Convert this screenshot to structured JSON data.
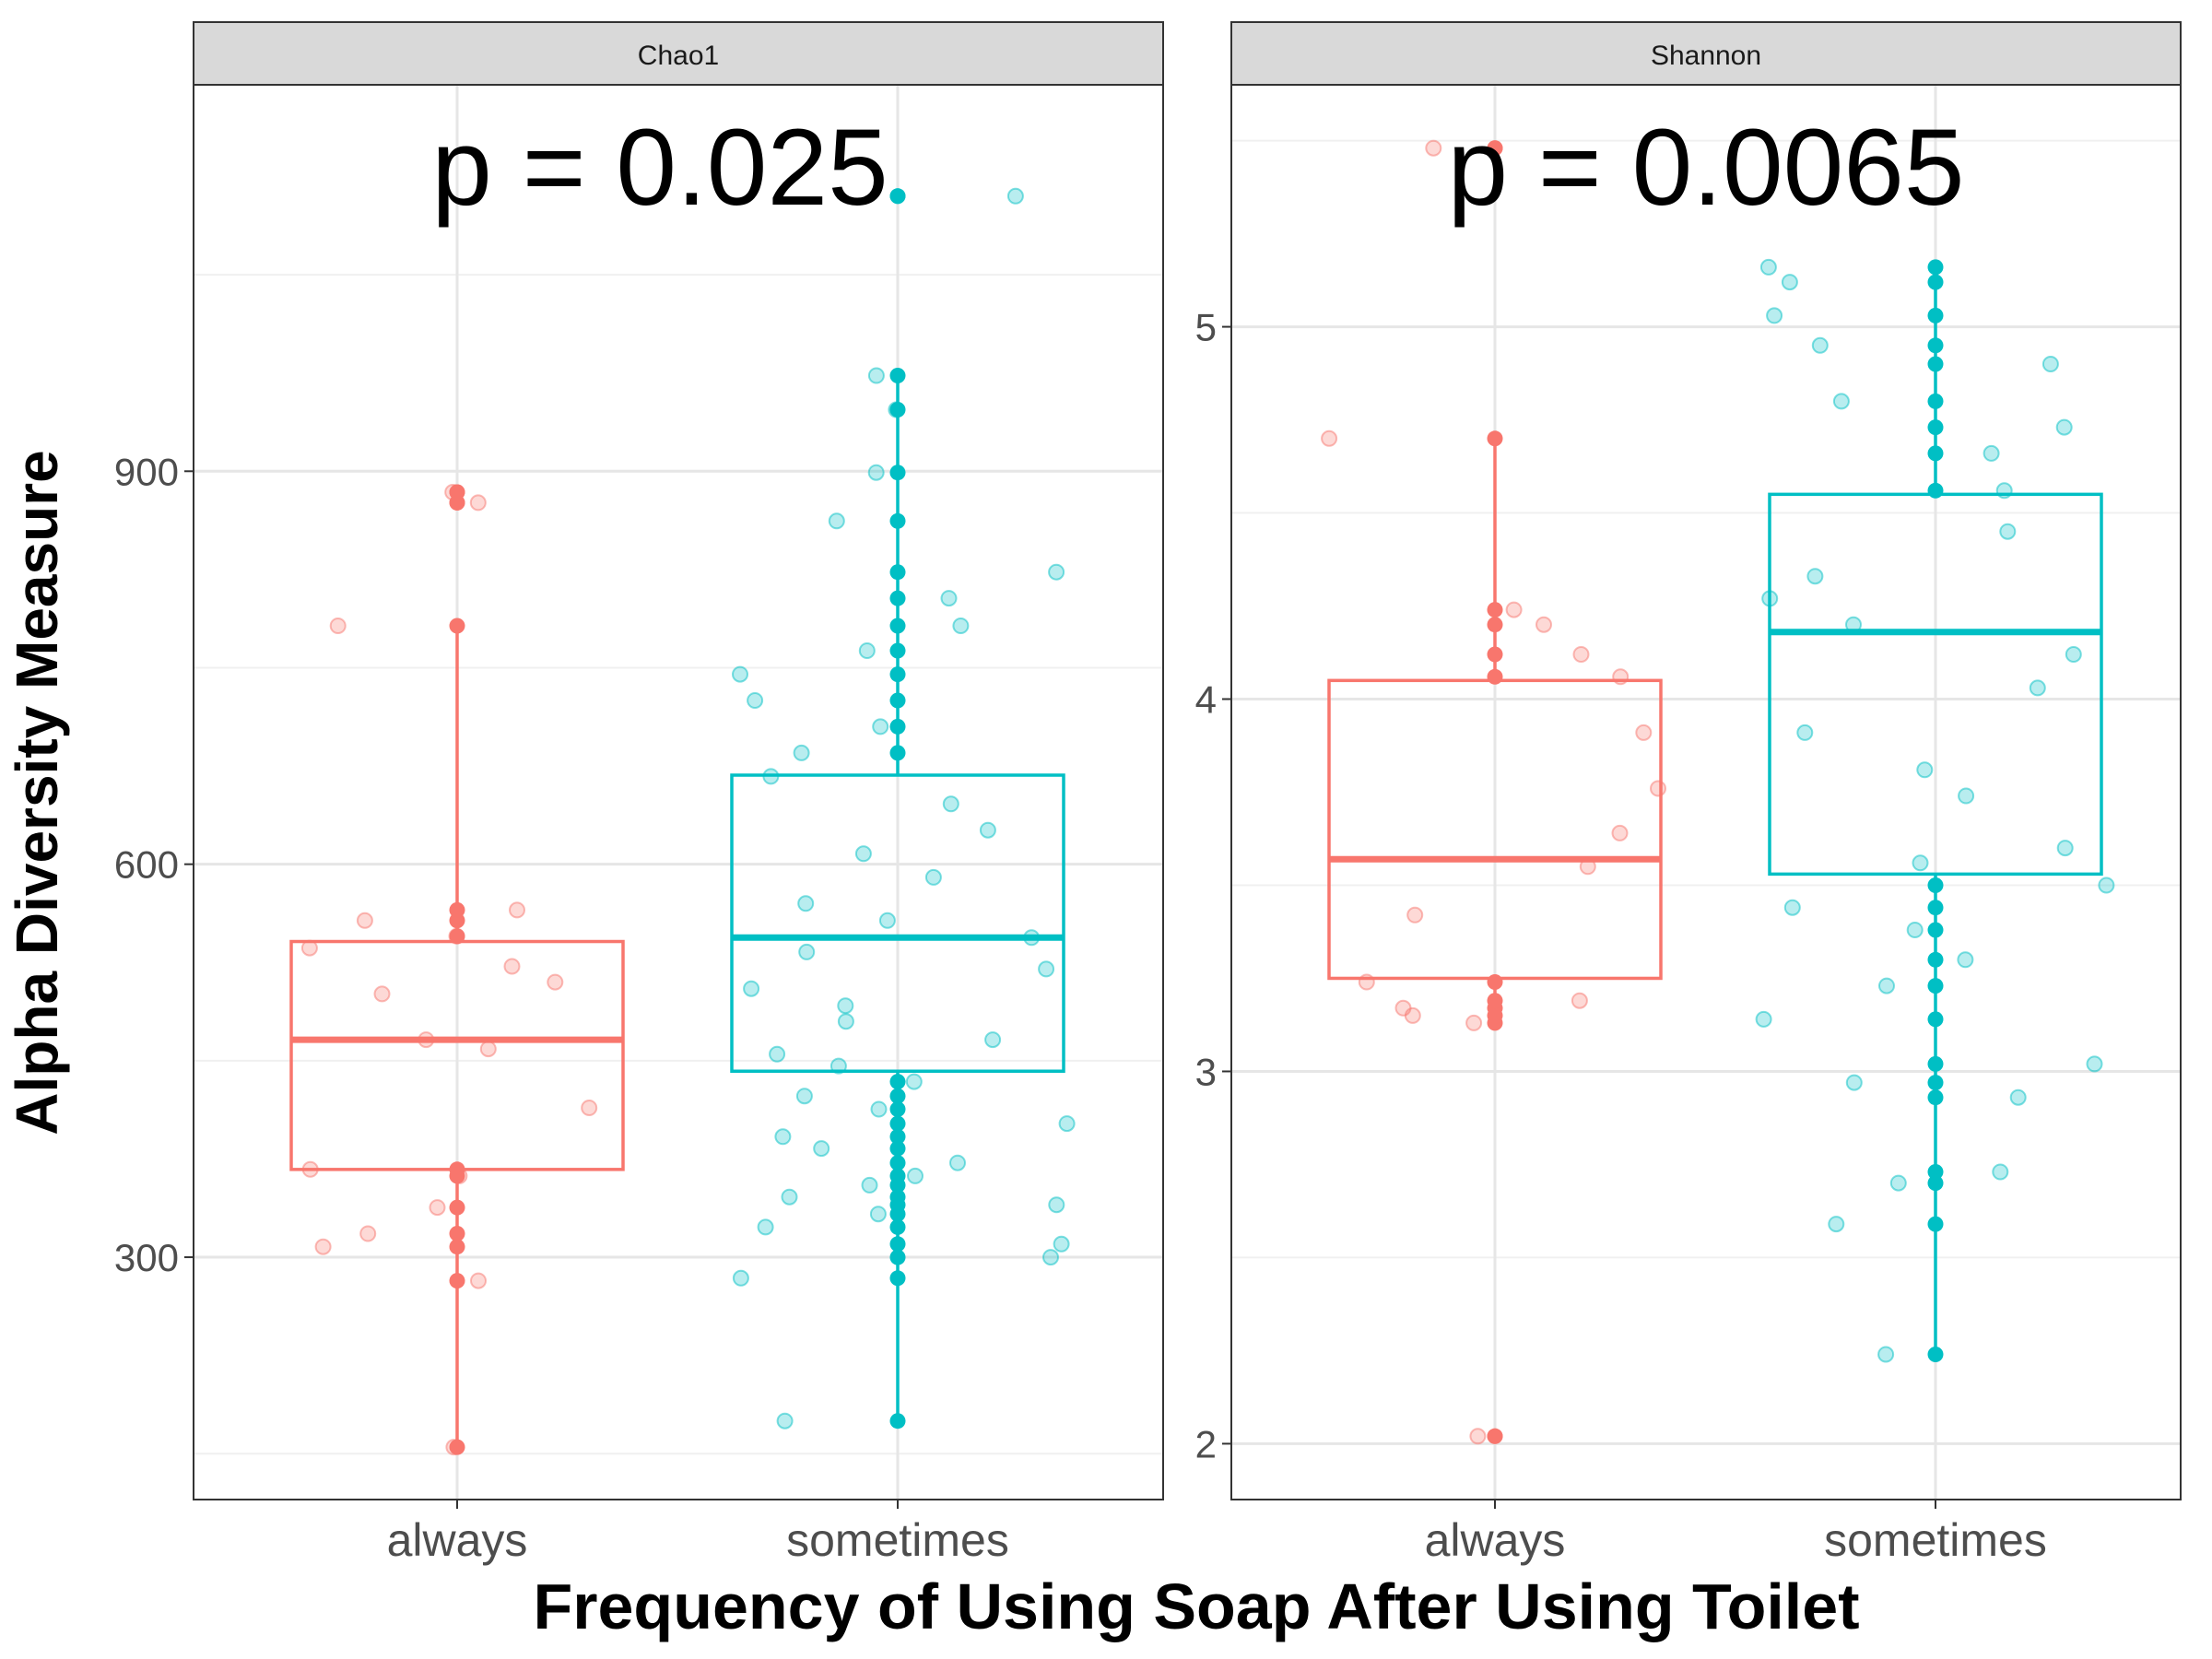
{
  "chart_data": {
    "type": "boxplot",
    "xlabel": "Frequency of Using Soap After Using Toilet",
    "ylabel": "Alpha Diversity Measure",
    "categories": [
      "always",
      "sometimes"
    ],
    "colors": {
      "always": "#F8766D",
      "sometimes": "#00BFC4"
    },
    "grid": true,
    "facets": [
      {
        "name": "Chao1",
        "annotation": "p = 0.025",
        "ylim": [
          115,
          1195
        ],
        "yticks": [
          300,
          600,
          900
        ],
        "boxes": [
          {
            "category": "always",
            "min": 155,
            "q1": 367,
            "median": 466,
            "q3": 541,
            "max": 782
          },
          {
            "category": "sometimes",
            "min": 175,
            "q1": 442,
            "median": 544,
            "q3": 668,
            "max": 973
          }
        ],
        "outliers": [
          {
            "category": "always",
            "values": [
              876,
              884
            ]
          },
          {
            "category": "sometimes",
            "values": [
              1110
            ]
          }
        ],
        "points": [
          {
            "category": "always",
            "values": [
              155,
              282,
              308,
              318,
              338,
              362,
              367,
              414,
              459,
              466,
              501,
              510,
              522,
              536,
              545,
              557,
              565,
              782,
              876,
              884
            ]
          },
          {
            "category": "sometimes",
            "values": [
              175,
              284,
              300,
              310,
              323,
              333,
              340,
              346,
              355,
              362,
              372,
              383,
              392,
              402,
              413,
              423,
              434,
              446,
              455,
              466,
              480,
              492,
              505,
              520,
              533,
              544,
              557,
              570,
              590,
              608,
              626,
              646,
              667,
              685,
              705,
              725,
              745,
              763,
              782,
              803,
              823,
              862,
              899,
              947,
              973,
              1110
            ]
          }
        ]
      },
      {
        "name": "Shannon",
        "annotation": "p = 0.0065",
        "ylim": [
          1.85,
          5.65
        ],
        "yticks": [
          2,
          3,
          4,
          5
        ],
        "boxes": [
          {
            "category": "always",
            "min": 3.13,
            "q1": 3.25,
            "median": 3.57,
            "q3": 4.05,
            "max": 4.7
          },
          {
            "category": "sometimes",
            "min": 2.24,
            "q1": 3.53,
            "median": 4.18,
            "q3": 4.55,
            "max": 5.16
          }
        ],
        "outliers": [
          {
            "category": "always",
            "values": [
              2.02,
              5.48
            ]
          }
        ],
        "points": [
          {
            "category": "always",
            "values": [
              2.02,
              3.13,
              3.15,
              3.17,
              3.19,
              3.24,
              3.42,
              3.55,
              3.64,
              3.76,
              3.91,
              4.06,
              4.12,
              4.2,
              4.24,
              4.7,
              5.48
            ]
          },
          {
            "category": "sometimes",
            "values": [
              2.24,
              2.59,
              2.7,
              2.73,
              2.93,
              2.97,
              3.02,
              3.14,
              3.23,
              3.3,
              3.38,
              3.44,
              3.5,
              3.56,
              3.6,
              3.74,
              3.81,
              3.91,
              4.03,
              4.12,
              4.2,
              4.27,
              4.33,
              4.45,
              4.56,
              4.66,
              4.73,
              4.8,
              4.9,
              4.95,
              5.03,
              5.12,
              5.16
            ]
          }
        ]
      }
    ]
  }
}
